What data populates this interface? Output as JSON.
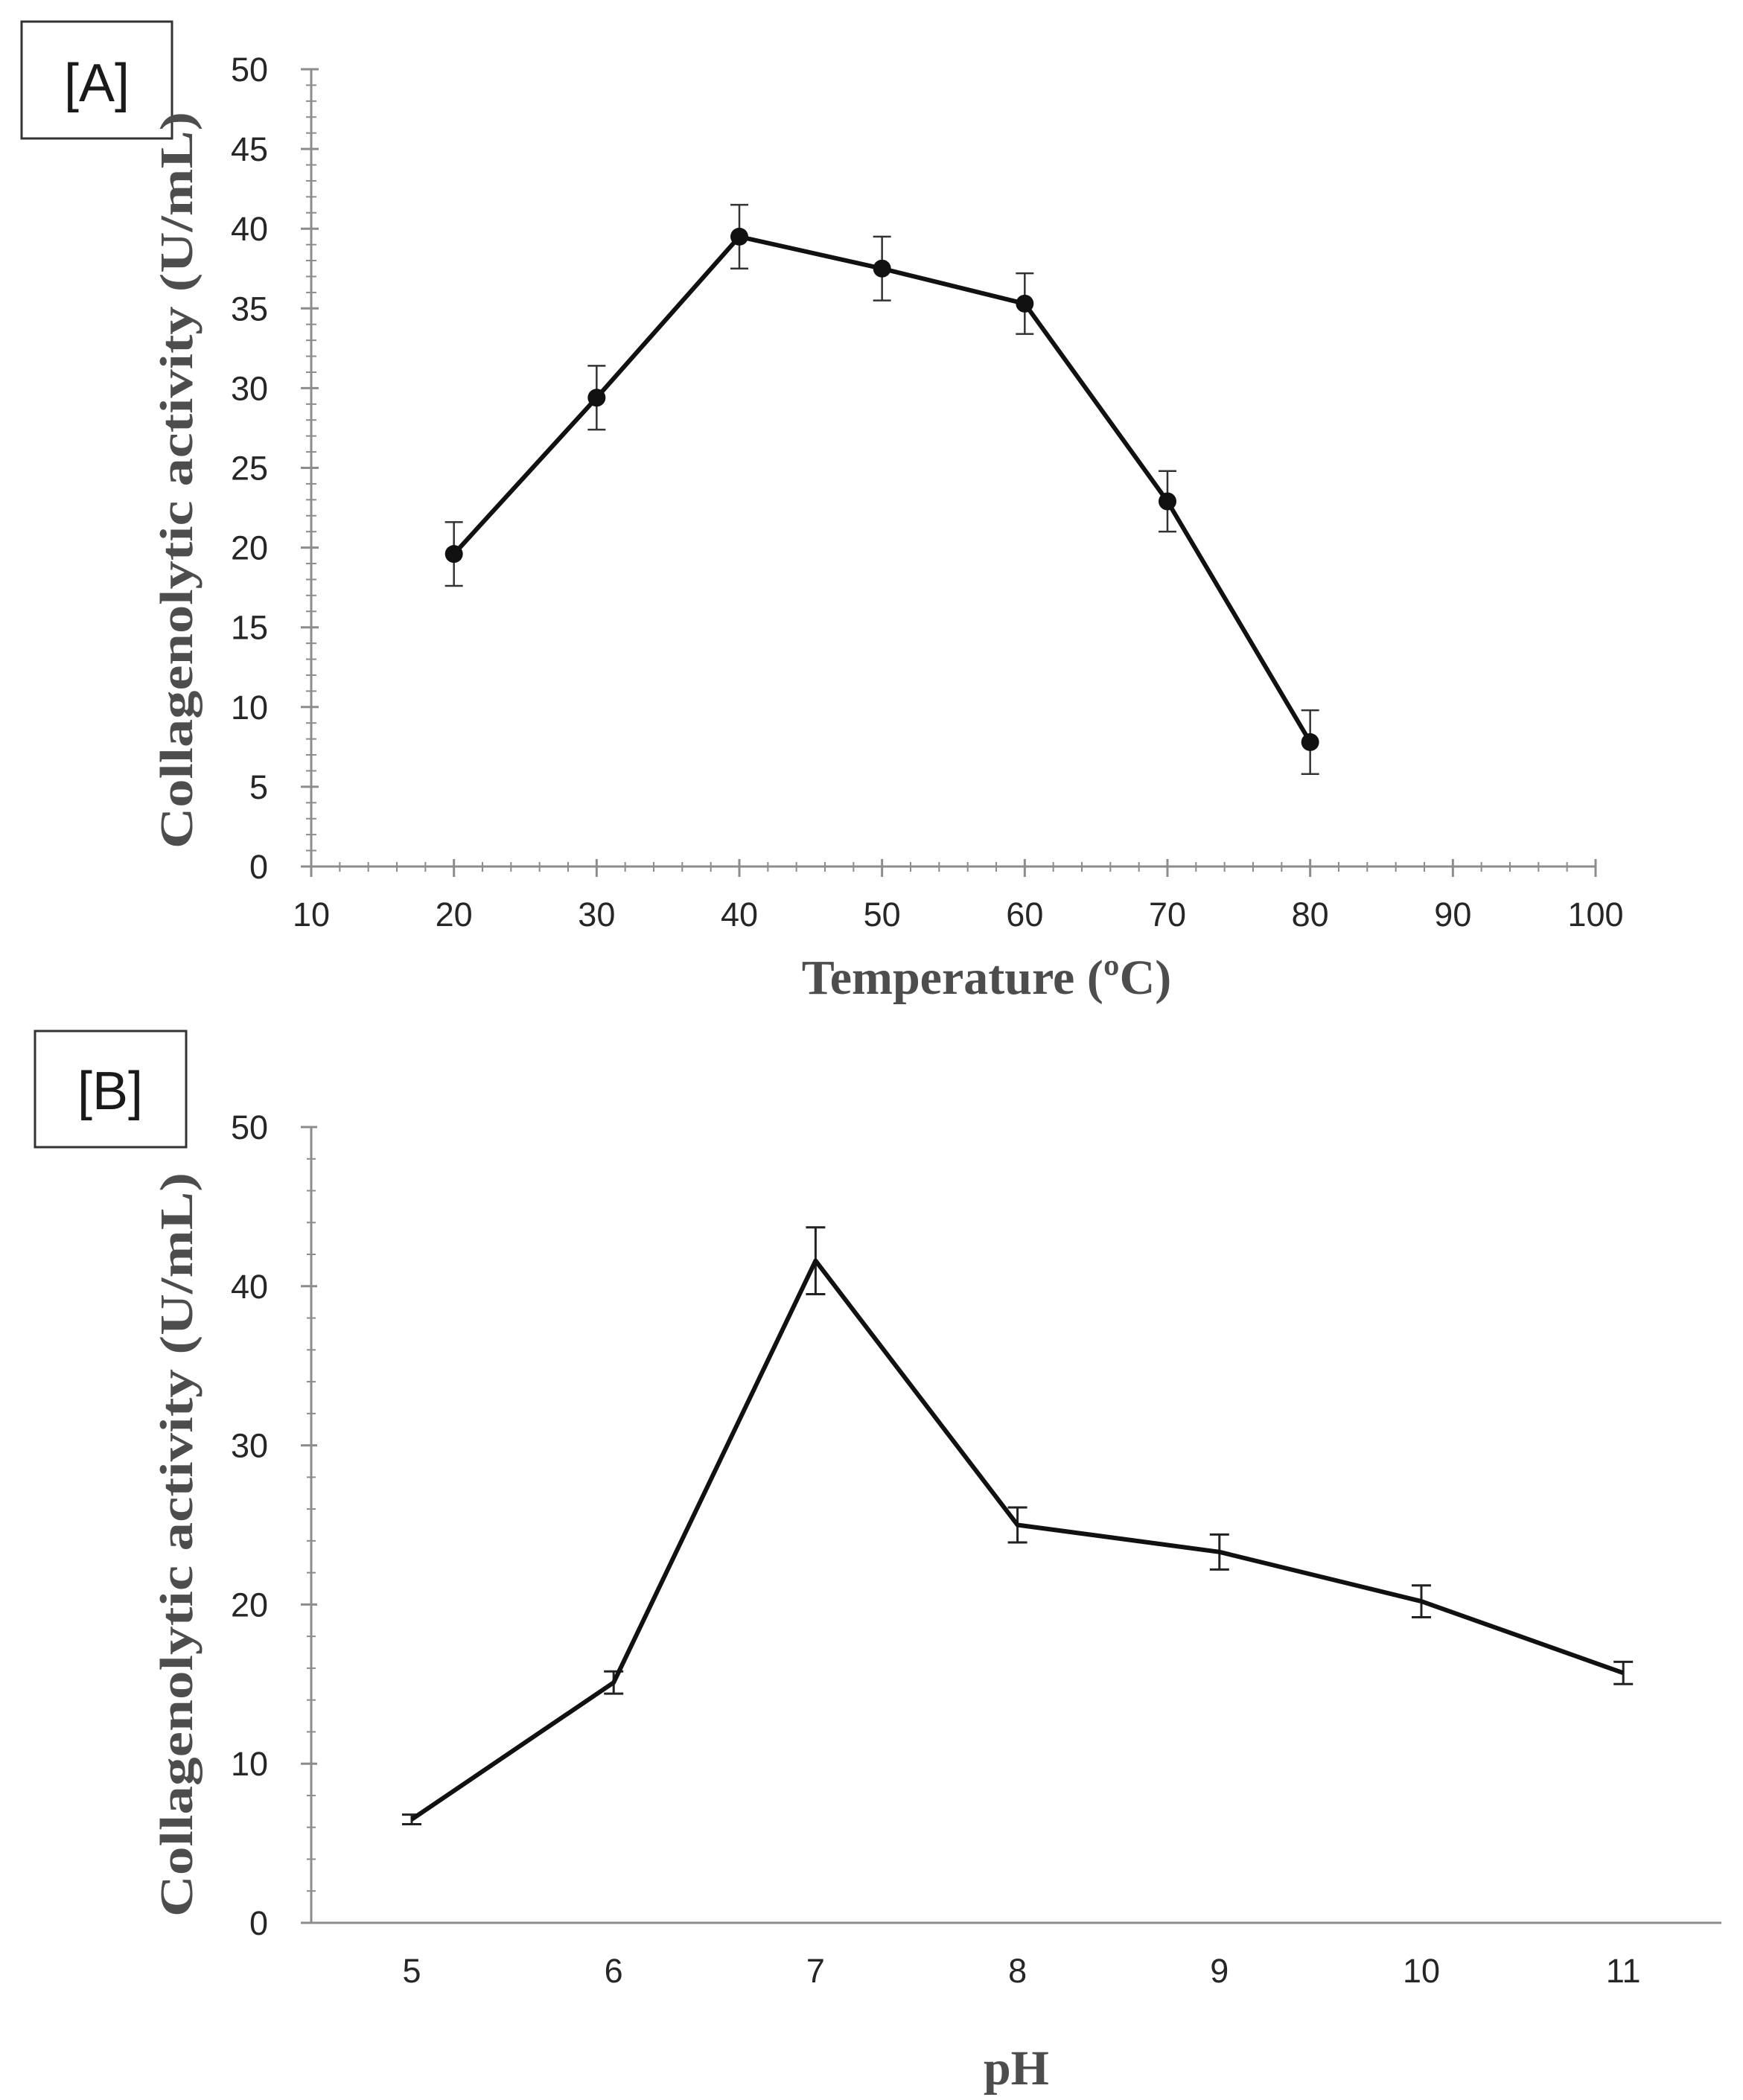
{
  "colors": {
    "line": "#111111",
    "axis": "#8c8c8c",
    "tick_text": "#262626",
    "axis_title": "#4d4d4d",
    "box_border": "#333333"
  },
  "chart_data": [
    {
      "panel_label": "[A]",
      "type": "line",
      "marker": "circle",
      "xlabel": "Temperature (ºC)",
      "ylabel": "Collagenolytic activity (U/mL)",
      "xlim": [
        10,
        100
      ],
      "ylim": [
        0,
        50
      ],
      "x_ticks": [
        10,
        20,
        30,
        40,
        50,
        60,
        70,
        80,
        90,
        100
      ],
      "y_ticks": [
        0,
        5,
        10,
        15,
        20,
        25,
        30,
        35,
        40,
        45,
        50
      ],
      "x_tick_labels": [
        "10",
        "20",
        "30",
        "40",
        "50",
        "60",
        "70",
        "80",
        "90",
        "100"
      ],
      "y_tick_labels": [
        "0",
        "5",
        "10",
        "15",
        "20",
        "25",
        "30",
        "35",
        "40",
        "45",
        "50"
      ],
      "x_minor_per_major": 5,
      "y_minor_per_major": 5,
      "series": [
        {
          "name": "Collagenolytic activity",
          "x": [
            20,
            30,
            40,
            50,
            60,
            70,
            80
          ],
          "y": [
            19.6,
            29.4,
            39.5,
            37.5,
            35.3,
            22.9,
            7.8
          ],
          "error": [
            2.0,
            2.0,
            2.0,
            2.0,
            1.9,
            1.9,
            2.0
          ]
        }
      ]
    },
    {
      "panel_label": "[B]",
      "type": "line",
      "marker": "none",
      "xlabel": "pH",
      "ylabel": "Collagenolytic activity (U/mL)",
      "categories": [
        "5",
        "6",
        "7",
        "8",
        "9",
        "10",
        "11"
      ],
      "ylim": [
        0,
        50
      ],
      "y_ticks": [
        0,
        10,
        20,
        30,
        40,
        50
      ],
      "y_tick_labels": [
        "0",
        "10",
        "20",
        "30",
        "40",
        "50"
      ],
      "y_minor_per_major": 5,
      "series": [
        {
          "name": "Collagenolytic activity",
          "values": [
            6.5,
            15.1,
            41.6,
            25.0,
            23.3,
            20.2,
            15.7
          ],
          "error": [
            0.3,
            0.7,
            2.1,
            1.1,
            1.1,
            1.0,
            0.7
          ]
        }
      ]
    }
  ]
}
